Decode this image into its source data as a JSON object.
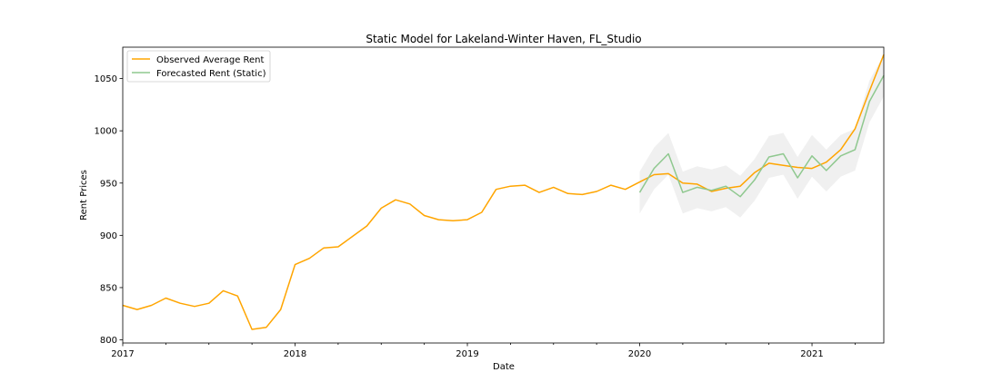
{
  "chart_data": {
    "type": "line",
    "title": "Static Model for Lakeland-Winter Haven, FL_Studio",
    "xlabel": "Date",
    "ylabel": "Rent Prices",
    "xlim": [
      "2017-01",
      "2021-06"
    ],
    "ylim": [
      797,
      1080
    ],
    "x_ticks": [
      "2017",
      "2018",
      "2019",
      "2020",
      "2021"
    ],
    "y_ticks": [
      800,
      850,
      900,
      950,
      1000,
      1050
    ],
    "grid": false,
    "legend_position": "upper-left",
    "series": [
      {
        "name": "Observed Average Rent",
        "color": "#ffa500",
        "x": [
          "2017-01",
          "2017-02",
          "2017-03",
          "2017-04",
          "2017-05",
          "2017-06",
          "2017-07",
          "2017-08",
          "2017-09",
          "2017-10",
          "2017-11",
          "2017-12",
          "2018-01",
          "2018-02",
          "2018-03",
          "2018-04",
          "2018-05",
          "2018-06",
          "2018-07",
          "2018-08",
          "2018-09",
          "2018-10",
          "2018-11",
          "2018-12",
          "2019-01",
          "2019-02",
          "2019-03",
          "2019-04",
          "2019-05",
          "2019-06",
          "2019-07",
          "2019-08",
          "2019-09",
          "2019-10",
          "2019-11",
          "2019-12",
          "2020-01",
          "2020-02",
          "2020-03",
          "2020-04",
          "2020-05",
          "2020-06",
          "2020-07",
          "2020-08",
          "2020-09",
          "2020-10",
          "2020-11",
          "2020-12",
          "2021-01",
          "2021-02",
          "2021-03",
          "2021-04",
          "2021-05",
          "2021-06"
        ],
        "values": [
          833,
          829,
          833,
          840,
          835,
          832,
          835,
          847,
          842,
          810,
          812,
          829,
          872,
          878,
          888,
          889,
          899,
          909,
          926,
          934,
          930,
          919,
          915,
          914,
          915,
          922,
          944,
          947,
          948,
          941,
          946,
          940,
          939,
          942,
          948,
          944,
          951,
          958,
          959,
          950,
          949,
          942,
          945,
          947,
          960,
          969,
          967,
          965,
          964,
          970,
          982,
          1002,
          1038,
          1073
        ]
      },
      {
        "name": "Forecasted Rent (Static)",
        "color": "#8fc88f",
        "x": [
          "2020-01",
          "2020-02",
          "2020-03",
          "2020-04",
          "2020-05",
          "2020-06",
          "2020-07",
          "2020-08",
          "2020-09",
          "2020-10",
          "2020-11",
          "2020-12",
          "2021-01",
          "2021-02",
          "2021-03",
          "2021-04",
          "2021-05",
          "2021-06"
        ],
        "values": [
          941,
          964,
          978,
          941,
          946,
          943,
          947,
          937,
          953,
          975,
          978,
          955,
          976,
          962,
          976,
          982,
          1028,
          1053
        ],
        "ci_lower": [
          921,
          944,
          958,
          921,
          926,
          923,
          927,
          917,
          933,
          955,
          958,
          935,
          956,
          942,
          956,
          962,
          1008,
          1033
        ],
        "ci_upper": [
          961,
          984,
          998,
          961,
          966,
          963,
          967,
          957,
          973,
          995,
          998,
          975,
          996,
          982,
          996,
          1002,
          1048,
          1073
        ]
      }
    ]
  }
}
